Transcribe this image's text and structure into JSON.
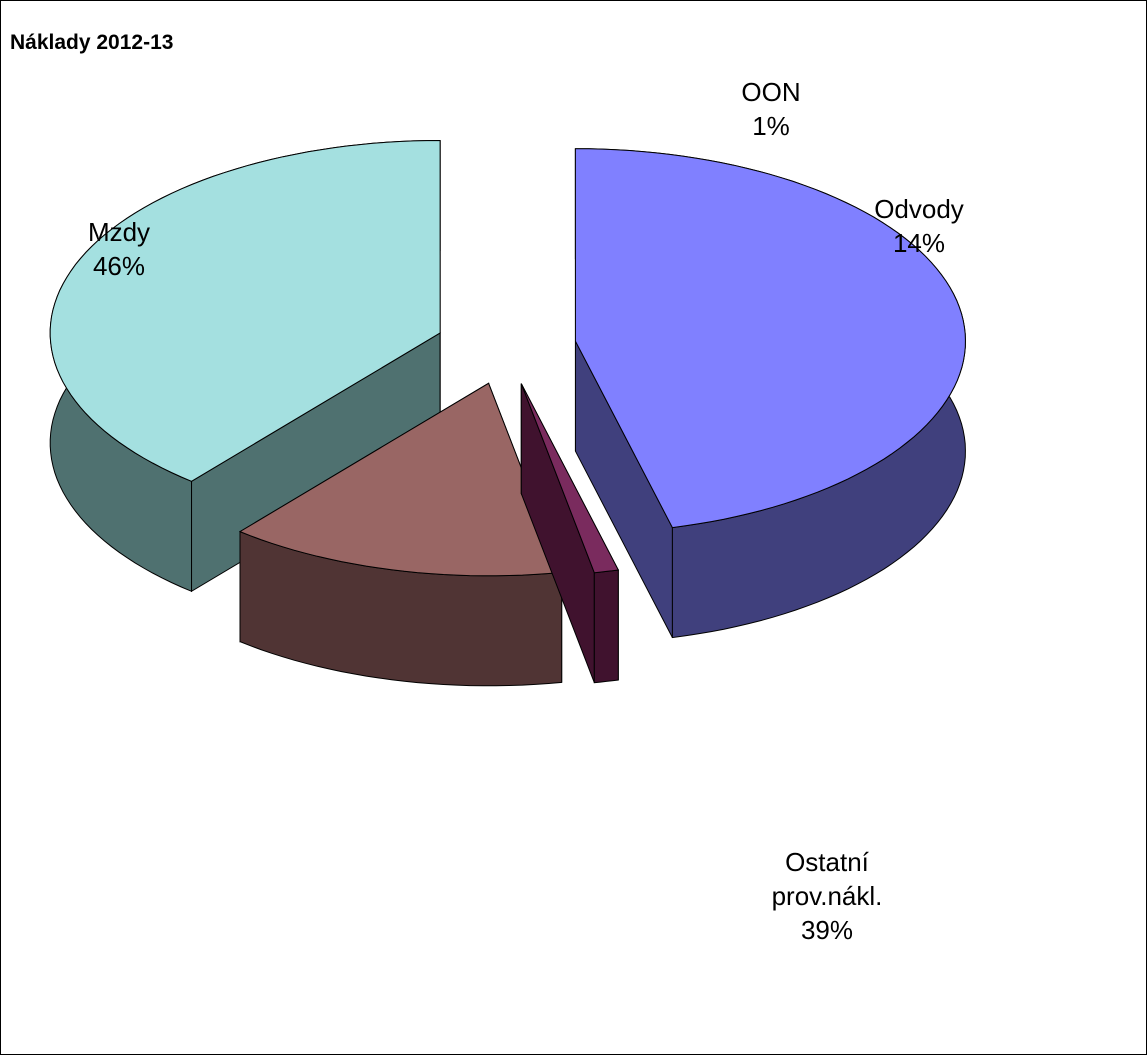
{
  "chart_data": {
    "type": "pie",
    "title": "Náklady 2012-13",
    "three_d": true,
    "exploded": true,
    "slices": [
      {
        "name": "Mzdy",
        "value": 46,
        "label_lines": [
          "Mzdy",
          "46%"
        ],
        "top_color": "#8080ff",
        "side_color": "#40407d"
      },
      {
        "name": "OON",
        "value": 1,
        "label_lines": [
          "OON",
          "1%"
        ],
        "top_color": "#7a2b5e",
        "side_color": "#40122e"
      },
      {
        "name": "Odvody",
        "value": 14,
        "label_lines": [
          "Odvody",
          "14%"
        ],
        "top_color": "#996664",
        "side_color": "#503434"
      },
      {
        "name": "Ostatní prov.nákl.",
        "value": 39,
        "label_lines": [
          "Ostatní",
          "prov.nákl.",
          "39%"
        ],
        "top_color": "#a4e0e0",
        "side_color": "#4f7170"
      }
    ]
  }
}
